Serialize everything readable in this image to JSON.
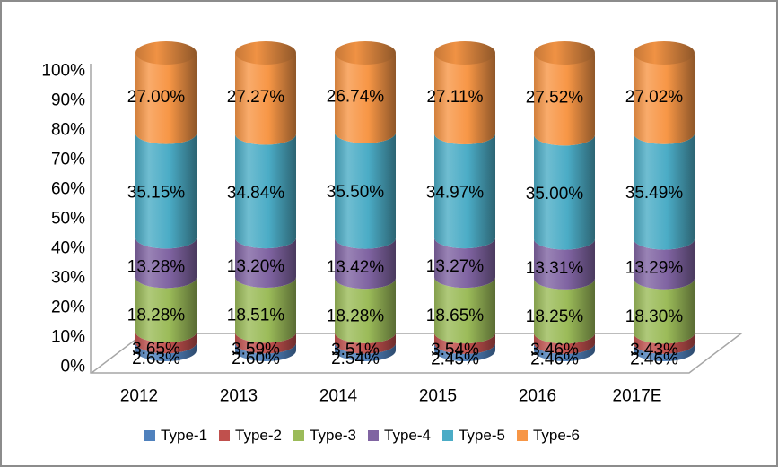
{
  "frame": {
    "background": "#FFFFFF",
    "border_color": "#8C8C8C"
  },
  "chart_data": {
    "type": "bar",
    "variant": "100%-stacked-3d-cylinder-column",
    "title": "",
    "categories": [
      "2012",
      "2013",
      "2014",
      "2015",
      "2016",
      "2017E"
    ],
    "series": [
      {
        "name": "Type-1",
        "color": "#4F81BD",
        "values": [
          2.63,
          2.6,
          2.54,
          2.45,
          2.46,
          2.46
        ]
      },
      {
        "name": "Type-2",
        "color": "#C0504D",
        "values": [
          3.65,
          3.59,
          3.51,
          3.54,
          3.46,
          3.43
        ]
      },
      {
        "name": "Type-3",
        "color": "#9BBB59",
        "values": [
          18.28,
          18.51,
          18.28,
          18.65,
          18.25,
          18.3
        ]
      },
      {
        "name": "Type-4",
        "color": "#8064A2",
        "values": [
          13.28,
          13.2,
          13.42,
          13.27,
          13.31,
          13.29
        ]
      },
      {
        "name": "Type-5",
        "color": "#4BACC6",
        "values": [
          35.15,
          34.84,
          35.5,
          34.97,
          35.0,
          35.49
        ]
      },
      {
        "name": "Type-6",
        "color": "#F79646",
        "values": [
          27.0,
          27.27,
          26.74,
          27.11,
          27.52,
          27.02
        ]
      }
    ],
    "data_labels_shown": true,
    "data_label_format": "0.00%",
    "y_axis": {
      "min": 0,
      "max": 100,
      "ticks": [
        "100%",
        "90%",
        "80%",
        "70%",
        "60%",
        "50%",
        "40%",
        "30%",
        "20%",
        "10%",
        "0%"
      ],
      "axis_color": "#A6A6A6"
    },
    "floor_outline_color": "#A6A6A6",
    "gridlines": false,
    "legend": {
      "position": "bottom",
      "entries": [
        "Type-1",
        "Type-2",
        "Type-3",
        "Type-4",
        "Type-5",
        "Type-6"
      ]
    }
  }
}
